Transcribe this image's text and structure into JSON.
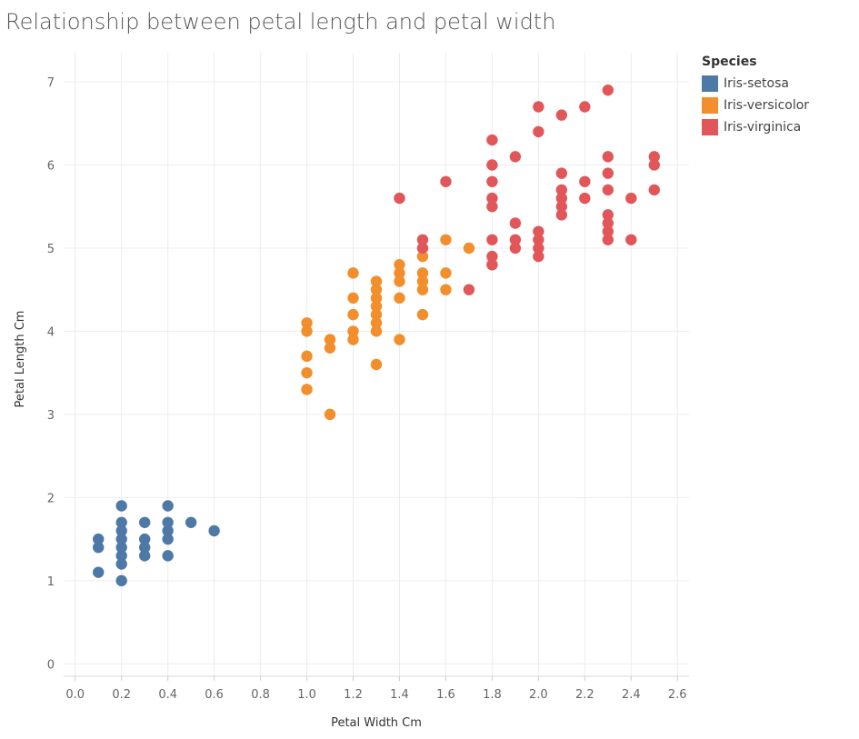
{
  "chart_data": {
    "type": "scatter",
    "title": "Relationship between petal length and petal width",
    "xlabel": "Petal Width Cm",
    "ylabel": "Petal Length Cm",
    "xlim": [
      -0.05,
      2.65
    ],
    "ylim": [
      -0.15,
      7.35
    ],
    "xticks": [
      "0.0",
      "0.2",
      "0.4",
      "0.6",
      "0.8",
      "1.0",
      "1.2",
      "1.4",
      "1.6",
      "1.8",
      "2.0",
      "2.2",
      "2.4",
      "2.6"
    ],
    "yticks": [
      "0",
      "1",
      "2",
      "3",
      "4",
      "5",
      "6",
      "7"
    ],
    "grid": true,
    "legend_title": "Species",
    "legend_position": "top-right",
    "series": [
      {
        "name": "Iris-setosa",
        "color": "#4e79a7",
        "points": [
          [
            0.1,
            1.5
          ],
          [
            0.1,
            1.4
          ],
          [
            0.1,
            1.1
          ],
          [
            0.2,
            1.9
          ],
          [
            0.2,
            1.7
          ],
          [
            0.2,
            1.6
          ],
          [
            0.2,
            1.5
          ],
          [
            0.2,
            1.4
          ],
          [
            0.2,
            1.3
          ],
          [
            0.2,
            1.2
          ],
          [
            0.2,
            1.0
          ],
          [
            0.3,
            1.7
          ],
          [
            0.3,
            1.5
          ],
          [
            0.3,
            1.4
          ],
          [
            0.3,
            1.3
          ],
          [
            0.4,
            1.9
          ],
          [
            0.4,
            1.7
          ],
          [
            0.4,
            1.6
          ],
          [
            0.4,
            1.5
          ],
          [
            0.4,
            1.3
          ],
          [
            0.5,
            1.7
          ],
          [
            0.6,
            1.6
          ]
        ]
      },
      {
        "name": "Iris-versicolor",
        "color": "#f28e2b",
        "points": [
          [
            1.0,
            4.1
          ],
          [
            1.0,
            4.0
          ],
          [
            1.0,
            3.7
          ],
          [
            1.0,
            3.5
          ],
          [
            1.0,
            3.3
          ],
          [
            1.1,
            3.9
          ],
          [
            1.1,
            3.8
          ],
          [
            1.1,
            3.0
          ],
          [
            1.2,
            4.7
          ],
          [
            1.2,
            4.4
          ],
          [
            1.2,
            4.2
          ],
          [
            1.2,
            4.0
          ],
          [
            1.2,
            3.9
          ],
          [
            1.3,
            4.6
          ],
          [
            1.3,
            4.5
          ],
          [
            1.3,
            4.4
          ],
          [
            1.3,
            4.3
          ],
          [
            1.3,
            4.2
          ],
          [
            1.3,
            4.1
          ],
          [
            1.3,
            4.0
          ],
          [
            1.3,
            3.6
          ],
          [
            1.4,
            4.8
          ],
          [
            1.4,
            4.7
          ],
          [
            1.4,
            4.6
          ],
          [
            1.4,
            4.4
          ],
          [
            1.4,
            3.9
          ],
          [
            1.5,
            4.9
          ],
          [
            1.5,
            4.7
          ],
          [
            1.5,
            4.6
          ],
          [
            1.5,
            4.5
          ],
          [
            1.5,
            4.2
          ],
          [
            1.6,
            5.1
          ],
          [
            1.6,
            4.7
          ],
          [
            1.6,
            4.5
          ],
          [
            1.7,
            5.0
          ],
          [
            1.8,
            4.8
          ]
        ]
      },
      {
        "name": "Iris-virginica",
        "color": "#e15759",
        "points": [
          [
            1.4,
            5.6
          ],
          [
            1.5,
            5.1
          ],
          [
            1.5,
            5.0
          ],
          [
            1.6,
            5.8
          ],
          [
            1.7,
            4.5
          ],
          [
            1.8,
            6.3
          ],
          [
            1.8,
            6.0
          ],
          [
            1.8,
            5.8
          ],
          [
            1.8,
            5.6
          ],
          [
            1.8,
            5.5
          ],
          [
            1.8,
            5.1
          ],
          [
            1.8,
            4.9
          ],
          [
            1.8,
            4.8
          ],
          [
            1.9,
            6.1
          ],
          [
            1.9,
            5.3
          ],
          [
            1.9,
            5.1
          ],
          [
            1.9,
            5.0
          ],
          [
            2.0,
            6.7
          ],
          [
            2.0,
            6.4
          ],
          [
            2.0,
            5.2
          ],
          [
            2.0,
            5.1
          ],
          [
            2.0,
            5.0
          ],
          [
            2.0,
            4.9
          ],
          [
            2.1,
            6.6
          ],
          [
            2.1,
            5.9
          ],
          [
            2.1,
            5.7
          ],
          [
            2.1,
            5.6
          ],
          [
            2.1,
            5.5
          ],
          [
            2.1,
            5.4
          ],
          [
            2.2,
            6.7
          ],
          [
            2.2,
            5.8
          ],
          [
            2.2,
            5.6
          ],
          [
            2.3,
            6.9
          ],
          [
            2.3,
            6.1
          ],
          [
            2.3,
            5.9
          ],
          [
            2.3,
            5.7
          ],
          [
            2.3,
            5.4
          ],
          [
            2.3,
            5.3
          ],
          [
            2.3,
            5.2
          ],
          [
            2.3,
            5.1
          ],
          [
            2.4,
            5.6
          ],
          [
            2.4,
            5.1
          ],
          [
            2.5,
            6.1
          ],
          [
            2.5,
            6.0
          ],
          [
            2.5,
            5.7
          ]
        ]
      }
    ]
  }
}
